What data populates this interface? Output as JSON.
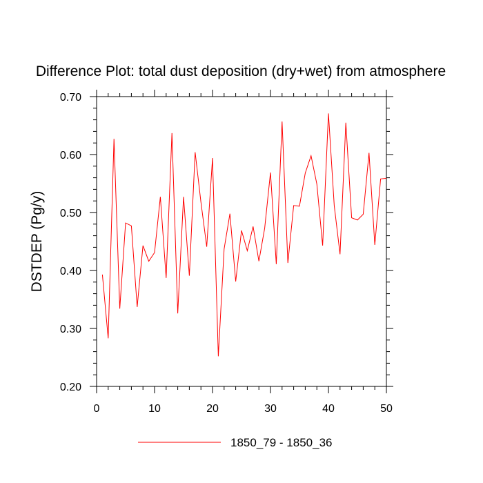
{
  "chart_data": {
    "type": "line",
    "title": "Difference Plot: total dust deposition (dry+wet) from atmosphere",
    "xlabel": "",
    "ylabel": "DSTDEP  (Pg/y)",
    "xlim": [
      0,
      50
    ],
    "ylim": [
      0.2,
      0.7
    ],
    "xticks": [
      0,
      10,
      20,
      30,
      40,
      50
    ],
    "xtick_labels": [
      "0",
      "10",
      "20",
      "30",
      "40",
      "50"
    ],
    "yticks": [
      0.2,
      0.3,
      0.4,
      0.5,
      0.6,
      0.7
    ],
    "ytick_labels": [
      "0.20",
      "0.30",
      "0.40",
      "0.50",
      "0.60",
      "0.70"
    ],
    "grid": false,
    "legend_position": "bottom",
    "series": [
      {
        "name": "1850_79 - 1850_36",
        "color": "#ff0000",
        "x": [
          1,
          2,
          3,
          4,
          5,
          6,
          7,
          8,
          9,
          10,
          11,
          12,
          13,
          14,
          15,
          16,
          17,
          18,
          19,
          20,
          21,
          22,
          23,
          24,
          25,
          26,
          27,
          28,
          29,
          30,
          31,
          32,
          33,
          34,
          35,
          36,
          37,
          38,
          39,
          40,
          41,
          42,
          43,
          44,
          45,
          46,
          47,
          48,
          49,
          50
        ],
        "values": [
          0.393,
          0.283,
          0.627,
          0.334,
          0.482,
          0.477,
          0.337,
          0.443,
          0.416,
          0.431,
          0.527,
          0.387,
          0.637,
          0.326,
          0.527,
          0.391,
          0.604,
          0.518,
          0.441,
          0.594,
          0.252,
          0.437,
          0.498,
          0.381,
          0.469,
          0.434,
          0.476,
          0.416,
          0.473,
          0.569,
          0.411,
          0.657,
          0.413,
          0.512,
          0.511,
          0.568,
          0.598,
          0.549,
          0.443,
          0.671,
          0.512,
          0.428,
          0.655,
          0.491,
          0.487,
          0.497,
          0.603,
          0.444,
          0.558,
          0.559
        ]
      }
    ]
  }
}
